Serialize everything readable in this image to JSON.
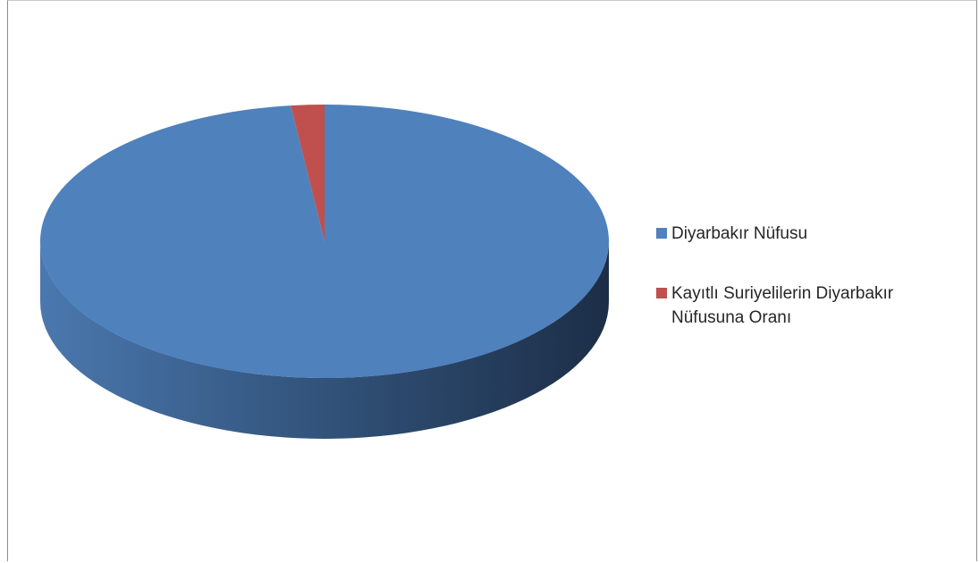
{
  "chart_data": {
    "type": "pie",
    "title": "",
    "labels": [
      "Diyarbakır Nüfusu",
      "Kayıtlı Suriyelilerin Diyarbakır Nüfusuna Oranı"
    ],
    "values": [
      98.1,
      1.9
    ],
    "colors": [
      "#4F81BD",
      "#C0504D"
    ],
    "shade_colors": [
      "#1F3350",
      "#7A2E2C"
    ],
    "style": "3d",
    "legend_position": "right"
  },
  "legend": {
    "items": [
      {
        "label": "Diyarbakır Nüfusu",
        "color": "#4F81BD"
      },
      {
        "label": "Kayıtlı Suriyelilerin Diyarbakır Nüfusuna Oranı",
        "color": "#C0504D"
      }
    ]
  }
}
